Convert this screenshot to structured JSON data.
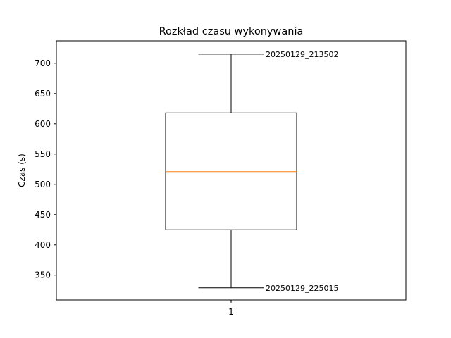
{
  "chart_data": {
    "type": "box",
    "title": "Rozkład czasu wykonywania",
    "xlabel": "",
    "ylabel": "Czas (s)",
    "ylim": [
      309,
      737
    ],
    "yticks": [
      350,
      400,
      450,
      500,
      550,
      600,
      650,
      700
    ],
    "categories": [
      "1"
    ],
    "boxes": [
      {
        "label": "1",
        "whisker_low": 329,
        "q1": 425,
        "median": 521,
        "q3": 618,
        "whisker_high": 715,
        "annotation_high": "20250129_213502",
        "annotation_low": "20250129_225015"
      }
    ],
    "colors": {
      "box": "#000000",
      "median": "#ff7f0e",
      "axes": "#000000"
    },
    "grid": false
  }
}
